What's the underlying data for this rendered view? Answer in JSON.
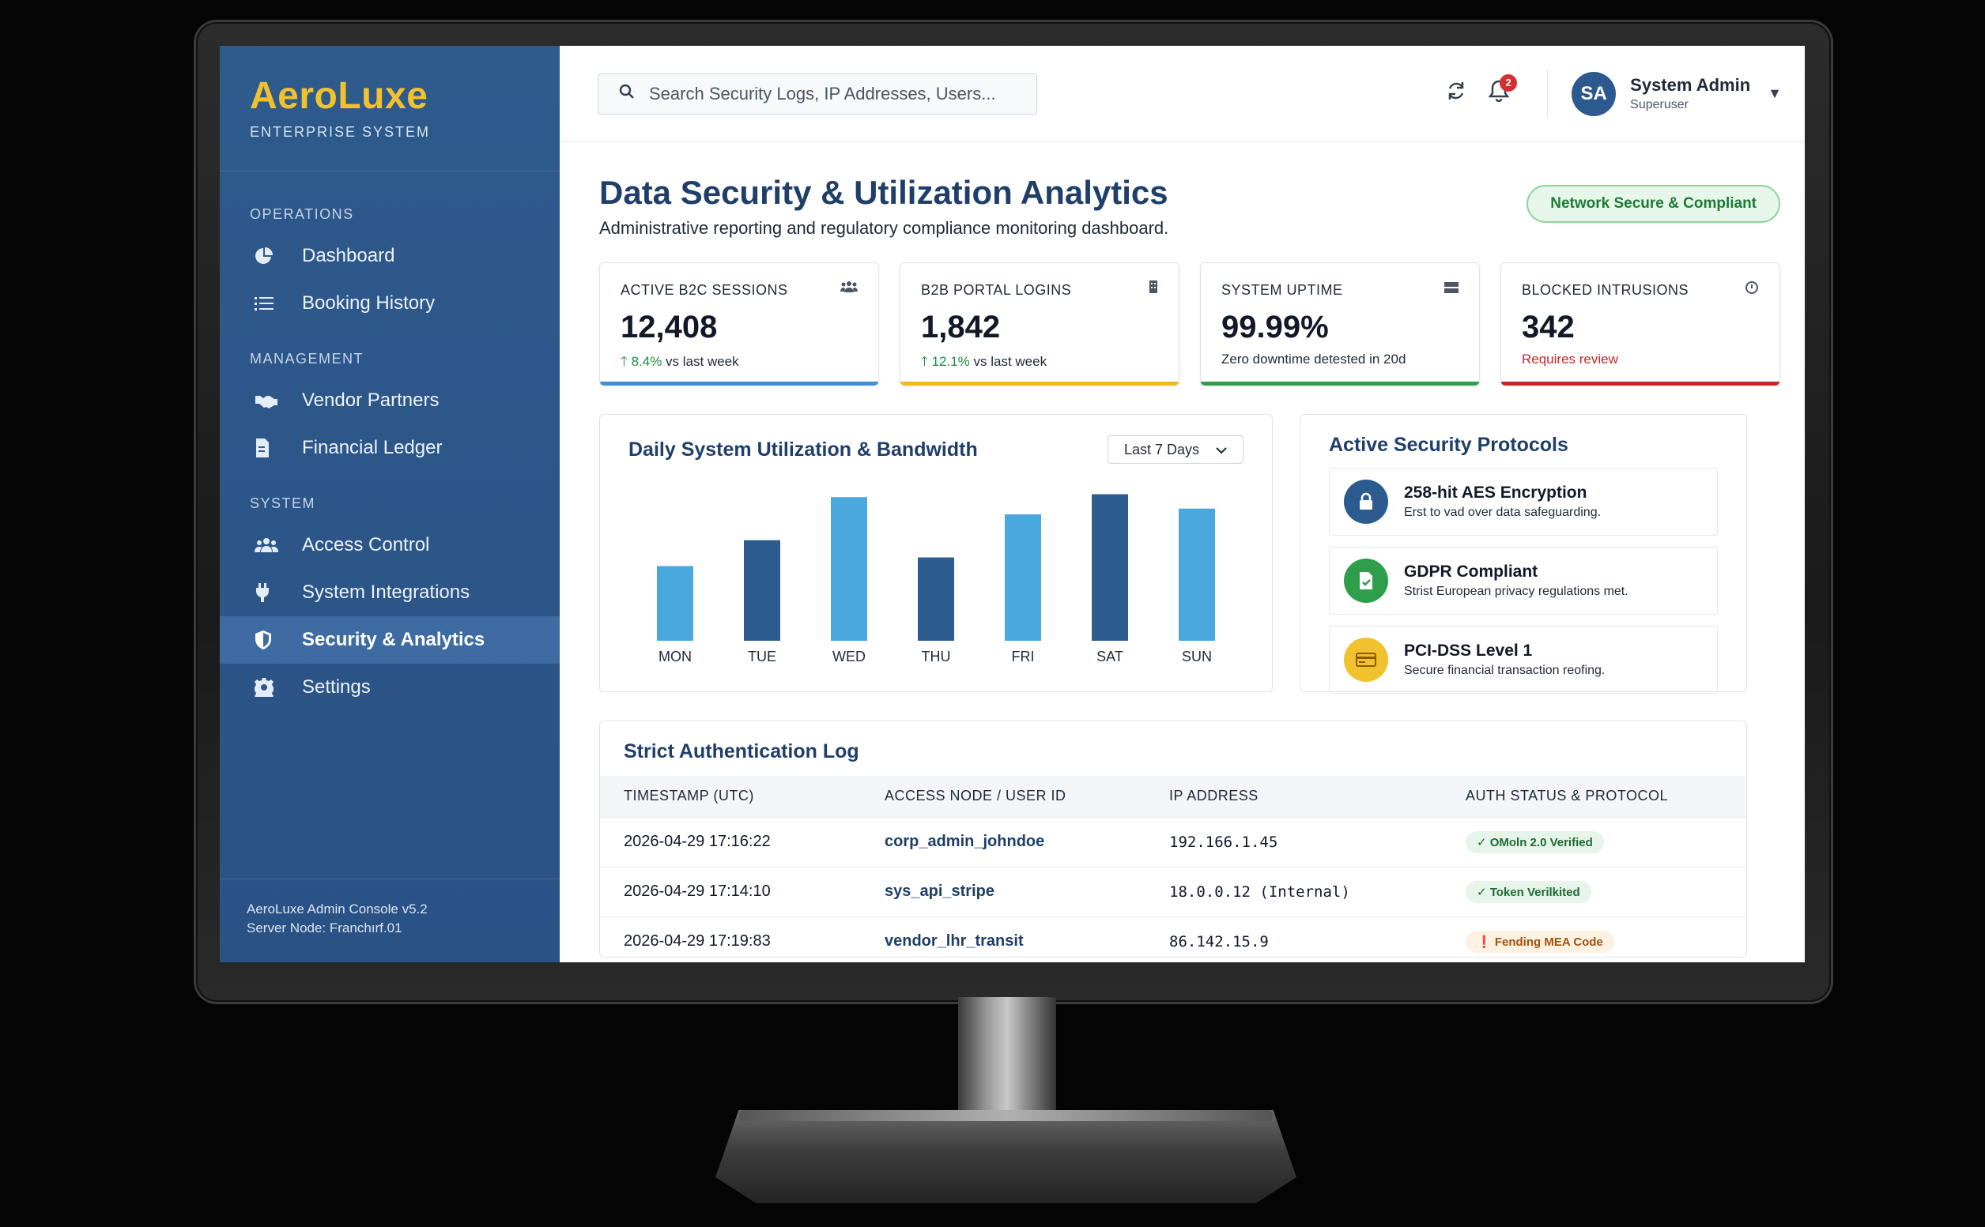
{
  "brand": {
    "name": "AeroLuxe",
    "subtitle": "ENTERPRISE SYSTEM"
  },
  "sidebar": {
    "sections": [
      {
        "title": "OPERATIONS",
        "items": [
          {
            "label": "Dashboard",
            "icon": "pie-chart-icon"
          },
          {
            "label": "Booking History",
            "icon": "list-icon"
          }
        ]
      },
      {
        "title": "MANAGEMENT",
        "items": [
          {
            "label": "Vendor Partners",
            "icon": "handshake-icon"
          },
          {
            "label": "Financial Ledger",
            "icon": "invoice-icon"
          }
        ]
      },
      {
        "title": "SYSTEM",
        "items": [
          {
            "label": "Access Control",
            "icon": "users-icon"
          },
          {
            "label": "System Integrations",
            "icon": "plug-icon"
          },
          {
            "label": "Security & Analytics",
            "icon": "shield-icon",
            "active": true
          },
          {
            "label": "Settings",
            "icon": "gear-icon"
          }
        ]
      }
    ],
    "footer": {
      "version": "AeroLuxe Admin Console v5.2",
      "node": "Server Node: Franchırf.01"
    }
  },
  "topbar": {
    "search_placeholder": "Search Security Logs, IP Addresses, Users...",
    "notification_count": "2",
    "user": {
      "initials": "SA",
      "name": "System Admin",
      "role": "Superuser"
    }
  },
  "page": {
    "title": "Data Security & Utilization Analytics",
    "subtitle": "Administrative reporting and regulatory compliance monitoring dashboard.",
    "status_pill": "Network Secure & Compliant"
  },
  "kpis": [
    {
      "label": "ACTIVE B2C SESSIONS",
      "value": "12,408",
      "delta": "8.4%",
      "delta_suffix": " vs last week",
      "accent": "#3f8fd6",
      "icon": "users-icon"
    },
    {
      "label": "B2B PORTAL LOGINS",
      "value": "1,842",
      "delta": "12.1%",
      "delta_suffix": " vs last week",
      "accent": "#f2b824",
      "icon": "building-icon"
    },
    {
      "label": "SYSTEM UPTIME",
      "value": "99.99%",
      "note": "Zero downtime detested in 20d",
      "accent": "#2e9e4a",
      "icon": "server-icon"
    },
    {
      "label": "BLOCKED INTRUSIONS",
      "value": "342",
      "note": "Requires review",
      "accent": "#c62828",
      "icon": "clock-icon"
    }
  ],
  "chart": {
    "title": "Daily System Utilization & Bandwidth",
    "range_option": "Last 7 Days"
  },
  "chart_data": {
    "type": "bar",
    "categories": [
      "MON",
      "TUE",
      "WED",
      "THU",
      "FRI",
      "SAT",
      "SUN"
    ],
    "values": [
      52,
      70,
      100,
      58,
      88,
      102,
      92
    ],
    "colors": [
      "#4aa8de",
      "#2c5c8f",
      "#4aa8de",
      "#2c5c8f",
      "#4aa8de",
      "#2c5c8f",
      "#4aa8de"
    ],
    "title": "Daily System Utilization & Bandwidth",
    "xlabel": "",
    "ylabel": "",
    "ylim": [
      0,
      110
    ],
    "grid": false
  },
  "protocols": {
    "title": "Active Security Protocols",
    "items": [
      {
        "title": "258-hit AES Encryption",
        "desc": "Erst to vad over data safeguarding.",
        "color": "#2c5c8f",
        "icon": "lock-icon"
      },
      {
        "title": "GDPR Compliant",
        "desc": "Strist European privacy regulations met.",
        "color": "#2e9e4a",
        "icon": "document-check-icon"
      },
      {
        "title": "PCI-DSS Level 1",
        "desc": "Secure financial transaction reofing.",
        "color": "#f2c12e",
        "icon": "credit-card-icon"
      }
    ]
  },
  "auth_log": {
    "title": "Strict Authentication Log",
    "columns": [
      "TIMESTAMP (UTC)",
      "ACCESS NODE / USER ID",
      "IP ADDRESS",
      "AUTH STATUS & PROTOCOL"
    ],
    "rows": [
      {
        "ts": "2026-04-29 17:16:22",
        "user": "corp_admin_johndoe",
        "ip": "192.166.1.45",
        "status": "✓ OMoln 2.0 Verified",
        "kind": "ok"
      },
      {
        "ts": "2026-04-29 17:14:10",
        "user": "sys_api_stripe",
        "ip": "18.0.0.12 (Internal)",
        "status": "✓ Token Verilkited",
        "kind": "ok"
      },
      {
        "ts": "2026-04-29 17:19:83",
        "user": "vendor_lhr_transit",
        "ip": "86.142.15.9",
        "status": "❗ Fending MEA Code",
        "kind": "pending"
      }
    ]
  }
}
